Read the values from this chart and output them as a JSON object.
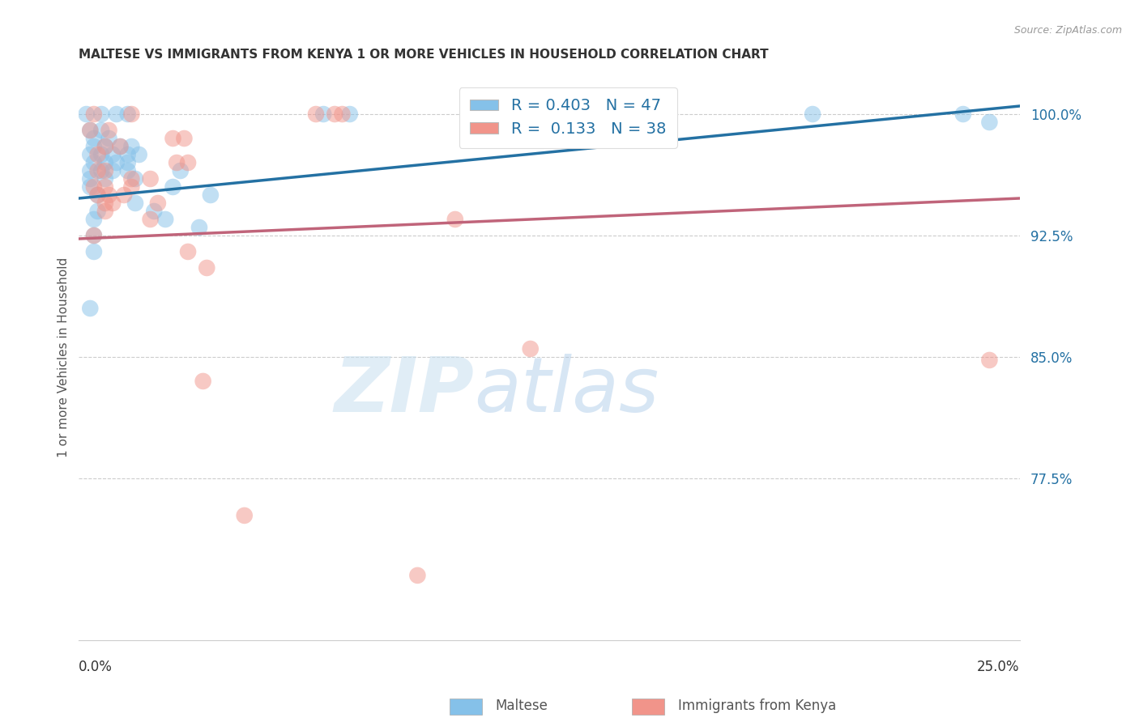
{
  "title": "MALTESE VS IMMIGRANTS FROM KENYA 1 OR MORE VEHICLES IN HOUSEHOLD CORRELATION CHART",
  "source": "Source: ZipAtlas.com",
  "ylabel": "1 or more Vehicles in Household",
  "yticks": [
    77.5,
    85.0,
    92.5,
    100.0
  ],
  "ytick_labels": [
    "77.5%",
    "85.0%",
    "92.5%",
    "100.0%"
  ],
  "xmin": 0.0,
  "xmax": 25.0,
  "ymin": 67.5,
  "ymax": 102.5,
  "blue_R": 0.403,
  "blue_N": 47,
  "pink_R": 0.133,
  "pink_N": 38,
  "blue_color": "#85c1e9",
  "pink_color": "#f1948a",
  "blue_line_color": "#2471a3",
  "pink_line_color": "#c0647a",
  "legend_blue_label": "Maltese",
  "legend_pink_label": "Immigrants from Kenya",
  "watermark_zip": "ZIP",
  "watermark_atlas": "atlas",
  "blue_line_x": [
    0.0,
    25.0
  ],
  "blue_line_y": [
    94.8,
    100.5
  ],
  "pink_line_x": [
    0.0,
    25.0
  ],
  "pink_line_y": [
    92.3,
    94.8
  ],
  "blue_dots": [
    [
      0.2,
      100.0
    ],
    [
      0.6,
      100.0
    ],
    [
      1.0,
      100.0
    ],
    [
      1.3,
      100.0
    ],
    [
      6.5,
      100.0
    ],
    [
      7.2,
      100.0
    ],
    [
      19.5,
      100.0
    ],
    [
      23.5,
      100.0
    ],
    [
      24.2,
      99.5
    ],
    [
      0.3,
      99.0
    ],
    [
      0.6,
      99.0
    ],
    [
      0.4,
      98.5
    ],
    [
      0.8,
      98.5
    ],
    [
      0.4,
      98.0
    ],
    [
      0.7,
      98.0
    ],
    [
      1.1,
      98.0
    ],
    [
      1.4,
      98.0
    ],
    [
      0.3,
      97.5
    ],
    [
      0.6,
      97.5
    ],
    [
      0.9,
      97.5
    ],
    [
      1.3,
      97.5
    ],
    [
      1.6,
      97.5
    ],
    [
      0.4,
      97.0
    ],
    [
      0.7,
      97.0
    ],
    [
      1.0,
      97.0
    ],
    [
      1.3,
      97.0
    ],
    [
      0.3,
      96.5
    ],
    [
      0.6,
      96.5
    ],
    [
      0.9,
      96.5
    ],
    [
      1.3,
      96.5
    ],
    [
      2.7,
      96.5
    ],
    [
      0.3,
      96.0
    ],
    [
      0.7,
      96.0
    ],
    [
      1.5,
      96.0
    ],
    [
      0.3,
      95.5
    ],
    [
      2.5,
      95.5
    ],
    [
      0.5,
      95.0
    ],
    [
      3.5,
      95.0
    ],
    [
      1.5,
      94.5
    ],
    [
      0.5,
      94.0
    ],
    [
      2.0,
      94.0
    ],
    [
      0.4,
      93.5
    ],
    [
      2.3,
      93.5
    ],
    [
      3.2,
      93.0
    ],
    [
      0.4,
      92.5
    ],
    [
      0.4,
      91.5
    ],
    [
      0.3,
      88.0
    ]
  ],
  "pink_dots": [
    [
      0.4,
      100.0
    ],
    [
      1.4,
      100.0
    ],
    [
      6.3,
      100.0
    ],
    [
      6.8,
      100.0
    ],
    [
      7.0,
      100.0
    ],
    [
      0.3,
      99.0
    ],
    [
      0.8,
      99.0
    ],
    [
      2.5,
      98.5
    ],
    [
      2.8,
      98.5
    ],
    [
      0.7,
      98.0
    ],
    [
      1.1,
      98.0
    ],
    [
      0.5,
      97.5
    ],
    [
      2.6,
      97.0
    ],
    [
      2.9,
      97.0
    ],
    [
      0.5,
      96.5
    ],
    [
      0.7,
      96.5
    ],
    [
      1.4,
      96.0
    ],
    [
      1.9,
      96.0
    ],
    [
      0.4,
      95.5
    ],
    [
      0.7,
      95.5
    ],
    [
      1.4,
      95.5
    ],
    [
      0.5,
      95.0
    ],
    [
      0.8,
      95.0
    ],
    [
      1.2,
      95.0
    ],
    [
      0.7,
      94.5
    ],
    [
      0.9,
      94.5
    ],
    [
      2.1,
      94.5
    ],
    [
      0.7,
      94.0
    ],
    [
      1.9,
      93.5
    ],
    [
      0.4,
      92.5
    ],
    [
      2.9,
      91.5
    ],
    [
      3.4,
      90.5
    ],
    [
      10.0,
      93.5
    ],
    [
      12.0,
      85.5
    ],
    [
      24.2,
      84.8
    ],
    [
      3.3,
      83.5
    ],
    [
      4.4,
      75.2
    ],
    [
      9.0,
      71.5
    ]
  ]
}
